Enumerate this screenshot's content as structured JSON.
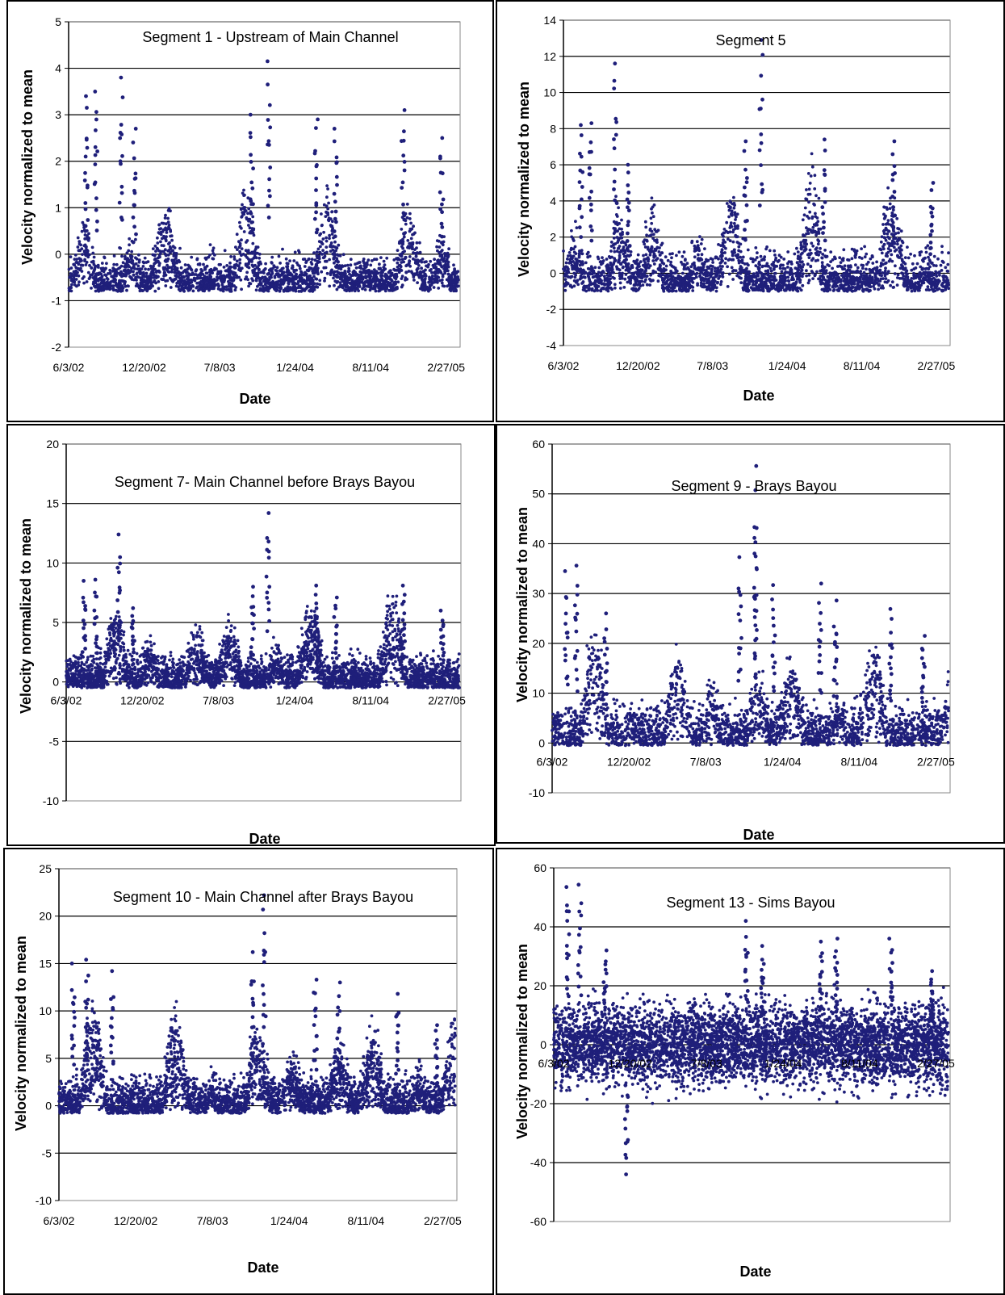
{
  "chart_data": [
    {
      "type": "scatter",
      "title": "Segment 1 - Upstream  of Main Channel",
      "xlabel": "Date",
      "ylabel": "Velocity normalized to mean",
      "ylim": [
        -2,
        5
      ],
      "yticks": [
        "-2",
        "-1",
        "0",
        "1",
        "2",
        "3",
        "4",
        "5"
      ],
      "xticks": [
        "6/3/02",
        "12/20/02",
        "7/8/03",
        "1/24/04",
        "8/11/04",
        "2/27/05"
      ],
      "xticks_inside": false,
      "grid": "horizontal",
      "color": "#1F1F7A",
      "series": [
        {
          "x_range": [
            "6/3/02",
            "4/1/05"
          ],
          "points_approx": 2500,
          "y_min": -1.05,
          "y_max": 4.15,
          "baseline": -0.8
        }
      ],
      "peaks": [
        {
          "x": "7/20/02",
          "y": 3.4
        },
        {
          "x": "8/15/02",
          "y": 3.5
        },
        {
          "x": "10/20/02",
          "y": 3.8
        },
        {
          "x": "11/25/02",
          "y": 2.7
        },
        {
          "x": "10/1/03",
          "y": 3.0
        },
        {
          "x": "11/15/03",
          "y": 4.15
        },
        {
          "x": "3/20/04",
          "y": 2.9
        },
        {
          "x": "5/10/04",
          "y": 2.7
        },
        {
          "x": "11/5/04",
          "y": 3.1
        },
        {
          "x": "2/15/05",
          "y": 2.5
        }
      ]
    },
    {
      "type": "scatter",
      "title": "Segment 5",
      "xlabel": "Date",
      "ylabel": "Velocity normalized to mean",
      "ylim": [
        -4,
        14
      ],
      "yticks": [
        "-4",
        "-2",
        "0",
        "2",
        "4",
        "6",
        "8",
        "10",
        "12",
        "14"
      ],
      "xticks": [
        "6/3/02",
        "12/20/02",
        "7/8/03",
        "1/24/04",
        "8/11/04",
        "2/27/05"
      ],
      "xticks_inside": false,
      "grid": "horizontal",
      "color": "#1F1F7A",
      "series": [
        {
          "x_range": [
            "6/3/02",
            "4/1/05"
          ],
          "points_approx": 2500,
          "y_min": -2.2,
          "y_max": 12.9,
          "baseline": -1.0
        }
      ],
      "peaks": [
        {
          "x": "7/20/02",
          "y": 8.2
        },
        {
          "x": "8/15/02",
          "y": 8.3
        },
        {
          "x": "10/20/02",
          "y": 11.6
        },
        {
          "x": "11/25/02",
          "y": 6.0
        },
        {
          "x": "11/15/03",
          "y": 12.9
        },
        {
          "x": "10/5/03",
          "y": 7.3
        },
        {
          "x": "5/1/04",
          "y": 7.4
        },
        {
          "x": "11/5/04",
          "y": 7.3
        },
        {
          "x": "2/15/05",
          "y": 5.0
        }
      ]
    },
    {
      "type": "scatter",
      "title": "Segment 7- Main Channel  before Brays Bayou",
      "xlabel": "Date",
      "ylabel": "Velocity normalized to mean",
      "ylim": [
        -10,
        20
      ],
      "yticks": [
        "-10",
        "-5",
        "0",
        "5",
        "10",
        "15",
        "20"
      ],
      "xticks": [
        "6/3/02",
        "12/20/02",
        "7/8/03",
        "1/24/04",
        "8/11/04",
        "2/27/05"
      ],
      "xticks_inside": true,
      "grid": "horizontal",
      "color": "#1F1F7A",
      "series": [
        {
          "x_range": [
            "6/3/02",
            "4/1/05"
          ],
          "points_approx": 3500,
          "y_min": -4.7,
          "y_max": 14.2,
          "baseline": -0.5
        }
      ],
      "peaks": [
        {
          "x": "7/20/02",
          "y": 8.5
        },
        {
          "x": "8/20/02",
          "y": 8.6
        },
        {
          "x": "10/20/02",
          "y": 12.4
        },
        {
          "x": "11/25/02",
          "y": 6.2
        },
        {
          "x": "11/15/03",
          "y": 14.2
        },
        {
          "x": "10/5/03",
          "y": 8.0
        },
        {
          "x": "3/20/04",
          "y": 8.1
        },
        {
          "x": "5/10/04",
          "y": 7.1
        },
        {
          "x": "11/5/04",
          "y": 8.1
        },
        {
          "x": "2/15/05",
          "y": 6.0
        }
      ]
    },
    {
      "type": "scatter",
      "title": "Segment 9 - Brays Bayou",
      "xlabel": "Date",
      "ylabel": "Velocity normalized to mean",
      "ylim": [
        -10,
        60
      ],
      "yticks": [
        "-10",
        "0",
        "10",
        "20",
        "30",
        "40",
        "50",
        "60"
      ],
      "xticks": [
        "6/3/02",
        "12/20/02",
        "7/8/03",
        "1/24/04",
        "8/11/04",
        "2/27/05"
      ],
      "xticks_inside": true,
      "grid": "horizontal",
      "color": "#1F1F7A",
      "series": [
        {
          "x_range": [
            "6/3/02",
            "4/1/05"
          ],
          "points_approx": 2500,
          "y_min": -1.5,
          "y_max": 55.6,
          "baseline": -0.5
        }
      ],
      "peaks": [
        {
          "x": "7/10/02",
          "y": 34.5
        },
        {
          "x": "8/5/02",
          "y": 35.6
        },
        {
          "x": "10/20/02",
          "y": 26.0
        },
        {
          "x": "10/5/03",
          "y": 37.3
        },
        {
          "x": "11/15/03",
          "y": 55.6
        },
        {
          "x": "11/15/03",
          "y": 40.3
        },
        {
          "x": "1/1/04",
          "y": 31.7
        },
        {
          "x": "5/1/04",
          "y": 32.0
        },
        {
          "x": "6/10/04",
          "y": 28.6
        },
        {
          "x": "11/1/04",
          "y": 26.9
        },
        {
          "x": "1/25/05",
          "y": 21.5
        }
      ]
    },
    {
      "type": "scatter",
      "title": "Segment 10 - Main Channel  after Brays Bayou",
      "xlabel": "Date",
      "ylabel": "Velocity normalized to mean",
      "ylim": [
        -10,
        25
      ],
      "yticks": [
        "-10",
        "-5",
        "0",
        "5",
        "10",
        "15",
        "20",
        "25"
      ],
      "xticks": [
        "6/3/02",
        "12/20/02",
        "7/8/03",
        "1/24/04",
        "8/11/04",
        "2/27/05"
      ],
      "xticks_inside": false,
      "grid": "horizontal",
      "color": "#1F1F7A",
      "series": [
        {
          "x_range": [
            "6/3/02",
            "4/1/05"
          ],
          "points_approx": 3500,
          "y_min": -4.7,
          "y_max": 22.2,
          "baseline": -0.8
        }
      ],
      "peaks": [
        {
          "x": "7/10/02",
          "y": 15.0
        },
        {
          "x": "8/15/02",
          "y": 15.4
        },
        {
          "x": "10/20/02",
          "y": 14.2
        },
        {
          "x": "10/20/03",
          "y": 16.2
        },
        {
          "x": "11/20/03",
          "y": 22.2
        },
        {
          "x": "4/1/04",
          "y": 13.3
        },
        {
          "x": "6/1/04",
          "y": 13.0
        },
        {
          "x": "11/1/04",
          "y": 11.8
        },
        {
          "x": "2/10/05",
          "y": 8.5
        }
      ]
    },
    {
      "type": "scatter",
      "title": "Segment 13 -  Sims Bayou",
      "xlabel": "Date",
      "ylabel": "Velocity normalized to mean",
      "ylim": [
        -60,
        60
      ],
      "yticks": [
        "-60",
        "-40",
        "-20",
        "0",
        "20",
        "40",
        "60"
      ],
      "xticks": [
        "6/3/02",
        "12/20/02",
        "7/8/03",
        "1/24/04",
        "8/11/04",
        "2/27/05"
      ],
      "xticks_inside": true,
      "grid": "horizontal",
      "color": "#1F1F7A",
      "series": [
        {
          "x_range": [
            "6/3/02",
            "4/1/05"
          ],
          "points_approx": 5000,
          "y_min": -44,
          "y_max": 54,
          "baseline": 0
        }
      ],
      "peaks": [
        {
          "x": "7/10/02",
          "y": 53.5
        },
        {
          "x": "8/10/02",
          "y": 54.3
        },
        {
          "x": "10/15/02",
          "y": 32.0
        },
        {
          "x": "12/10/02",
          "y": -44.0
        },
        {
          "x": "10/20/03",
          "y": 42.0
        },
        {
          "x": "12/1/03",
          "y": 33.5
        },
        {
          "x": "5/1/04",
          "y": 35.0
        },
        {
          "x": "6/10/04",
          "y": 36.0
        },
        {
          "x": "11/1/04",
          "y": 36.0
        },
        {
          "x": "2/15/05",
          "y": 25.0
        }
      ]
    }
  ]
}
